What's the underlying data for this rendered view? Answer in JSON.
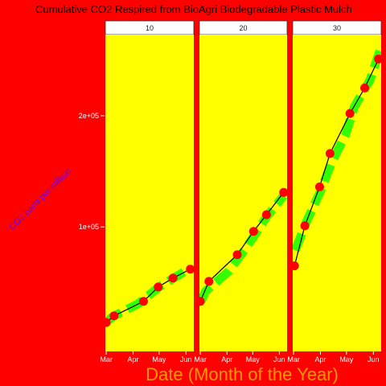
{
  "chart_data": {
    "type": "line",
    "title": "Cumulative CO2 Respired from BioAgri Biodegradable Plastic Mulch",
    "xlabel": "Date (Month of the Year)",
    "ylabel": "CO2 parts per million",
    "y_ticks": [
      100000,
      200000
    ],
    "y_tick_labels": [
      "1e+05",
      "2e+05"
    ],
    "ylim": [
      -12000,
      273000
    ],
    "x_ticks": [
      "Mar",
      "Apr",
      "May",
      "Jun"
    ],
    "xlim": [
      "2019-02-28",
      "2019-06-10"
    ],
    "grid": false,
    "legend": "none",
    "colors": {
      "background": "#ff0000",
      "panel": "#ffff00",
      "strip": "#ffffff",
      "point": "#ff0000",
      "line": "#000000",
      "fit": "#33ff00",
      "title": "#000000",
      "xlabel": "#ff9900",
      "ylabel": "#6600ff",
      "tick": "#ffffff"
    },
    "panels": [
      {
        "label": "10",
        "points": [
          {
            "x": "2019-03-01",
            "y": 14000
          },
          {
            "x": "2019-03-10",
            "y": 20000
          },
          {
            "x": "2019-04-13",
            "y": 33000
          },
          {
            "x": "2019-04-30",
            "y": 46000
          },
          {
            "x": "2019-05-17",
            "y": 54000
          },
          {
            "x": "2019-06-06",
            "y": 62000
          }
        ],
        "fit": [
          {
            "x": "2019-03-01",
            "y": 14500
          },
          {
            "x": "2019-03-09",
            "y": 19500
          },
          {
            "x": "2019-04-07",
            "y": 31000
          },
          {
            "x": "2019-05-01",
            "y": 46000
          },
          {
            "x": "2019-06-06",
            "y": 63000
          }
        ]
      },
      {
        "label": "20",
        "points": [
          {
            "x": "2019-03-01",
            "y": 33000
          },
          {
            "x": "2019-03-11",
            "y": 51000
          },
          {
            "x": "2019-04-13",
            "y": 75000
          },
          {
            "x": "2019-05-02",
            "y": 96000
          },
          {
            "x": "2019-05-17",
            "y": 111000
          },
          {
            "x": "2019-06-06",
            "y": 131000
          }
        ],
        "fit": [
          {
            "x": "2019-03-02",
            "y": 33000
          },
          {
            "x": "2019-03-07",
            "y": 42000
          },
          {
            "x": "2019-04-03",
            "y": 60000
          },
          {
            "x": "2019-04-25",
            "y": 83000
          },
          {
            "x": "2019-05-06",
            "y": 96000
          },
          {
            "x": "2019-05-17",
            "y": 109000
          },
          {
            "x": "2019-06-06",
            "y": 128000
          }
        ]
      },
      {
        "label": "30",
        "points": [
          {
            "x": "2019-03-02",
            "y": 65000
          },
          {
            "x": "2019-03-14",
            "y": 101000
          },
          {
            "x": "2019-03-31",
            "y": 136000
          },
          {
            "x": "2019-04-12",
            "y": 166000
          },
          {
            "x": "2019-05-05",
            "y": 202000
          },
          {
            "x": "2019-05-22",
            "y": 225000
          },
          {
            "x": "2019-06-07",
            "y": 251000
          }
        ],
        "fit": [
          {
            "x": "2019-03-03",
            "y": 79000
          },
          {
            "x": "2019-03-16",
            "y": 105000
          },
          {
            "x": "2019-04-01",
            "y": 132000
          },
          {
            "x": "2019-04-14",
            "y": 158000
          },
          {
            "x": "2019-04-30",
            "y": 183000
          },
          {
            "x": "2019-05-10",
            "y": 208000
          },
          {
            "x": "2019-05-28",
            "y": 232000
          },
          {
            "x": "2019-06-10",
            "y": 262000
          }
        ]
      }
    ]
  }
}
